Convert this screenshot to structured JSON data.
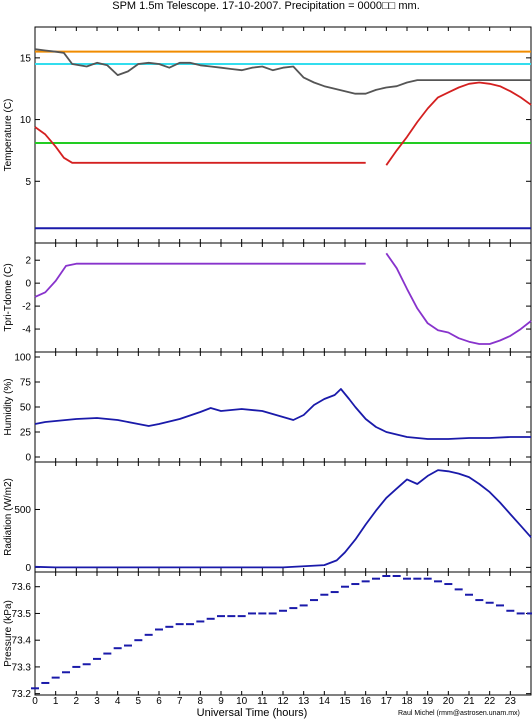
{
  "title": "SPM 1.5m Telescope. 17-10-2007. Precipitation = 0000□□ mm.",
  "credit": "Raul Michel (rmm@astrosen.unam.mx)",
  "colors": {
    "orange": "#f08c00",
    "cyan": "#33ddee",
    "gray": "#555555",
    "red": "#d42020",
    "green": "#22cc22",
    "blue": "#1a1aaa",
    "purple": "#8833cc"
  },
  "chart_data": [
    {
      "type": "line",
      "id": "temperature",
      "ylabel": "Temperature (C)",
      "xlim": [
        0,
        24
      ],
      "ylim": [
        0,
        17.5
      ],
      "yticks": [
        5,
        10,
        15
      ],
      "hlines": [
        {
          "y": 15.5,
          "color": "orange"
        },
        {
          "y": 14.5,
          "color": "cyan"
        },
        {
          "y": 8.1,
          "color": "green"
        },
        {
          "y": 1.2,
          "color": "blue"
        }
      ],
      "series": [
        {
          "color": "gray",
          "x": [
            0,
            0.5,
            1,
            1.4,
            1.8,
            2.5,
            3,
            3.5,
            4,
            4.5,
            5,
            5.5,
            6,
            6.5,
            7,
            7.5,
            8,
            8.5,
            9,
            9.5,
            10,
            10.5,
            11,
            11.5,
            12,
            12.5,
            13,
            13.5,
            14,
            14.5,
            15,
            15.5,
            16,
            16.5,
            17,
            17.5,
            18,
            18.5,
            19,
            20,
            21,
            22,
            23,
            24
          ],
          "y": [
            15.7,
            15.6,
            15.5,
            15.4,
            14.5,
            14.3,
            14.6,
            14.4,
            13.6,
            13.9,
            14.5,
            14.6,
            14.5,
            14.2,
            14.6,
            14.6,
            14.4,
            14.3,
            14.2,
            14.1,
            14.0,
            14.2,
            14.3,
            14.0,
            14.2,
            14.3,
            13.4,
            13.0,
            12.7,
            12.5,
            12.3,
            12.1,
            12.1,
            12.4,
            12.6,
            12.7,
            13.0,
            13.2,
            13.2,
            13.2,
            13.2,
            13.2,
            13.2,
            13.2
          ]
        },
        {
          "color": "red",
          "x": [
            0,
            0.5,
            1,
            1.4,
            1.8,
            3,
            6,
            9,
            12,
            15,
            16,
            16.5,
            17,
            17.5,
            18,
            18.5,
            19,
            19.5,
            20,
            20.5,
            21,
            21.5,
            22,
            22.5,
            23,
            23.5,
            24
          ],
          "y": [
            9.4,
            8.8,
            7.8,
            6.9,
            6.5,
            6.5,
            6.5,
            6.5,
            6.5,
            6.5,
            6.5,
            null,
            6.3,
            7.5,
            8.6,
            9.8,
            10.9,
            11.8,
            12.2,
            12.6,
            12.9,
            13.0,
            12.9,
            12.7,
            12.3,
            11.8,
            11.2
          ]
        }
      ]
    },
    {
      "type": "line",
      "id": "tdiff",
      "ylabel": "Tpri-Tdome (C)",
      "xlim": [
        0,
        24
      ],
      "ylim": [
        -6,
        3.5
      ],
      "yticks": [
        2,
        0,
        -2,
        -4
      ],
      "series": [
        {
          "color": "purple",
          "x": [
            0,
            0.5,
            1,
            1.5,
            2,
            6,
            10,
            14,
            16,
            16.5,
            17,
            17.5,
            18,
            18.5,
            19,
            19.5,
            20,
            20.5,
            21,
            21.5,
            22,
            22.5,
            23,
            23.5,
            24
          ],
          "y": [
            -1.2,
            -0.8,
            0.2,
            1.5,
            1.7,
            1.7,
            1.7,
            1.7,
            1.7,
            null,
            2.6,
            1.3,
            -0.5,
            -2.2,
            -3.5,
            -4.1,
            -4.3,
            -4.8,
            -5.1,
            -5.3,
            -5.3,
            -5.0,
            -4.6,
            -4.0,
            -3.3
          ]
        }
      ]
    },
    {
      "type": "line",
      "id": "humidity",
      "ylabel": "Humidity (%)",
      "xlim": [
        0,
        24
      ],
      "ylim": [
        -5,
        105
      ],
      "yticks": [
        0,
        25,
        50,
        75,
        100
      ],
      "series": [
        {
          "color": "blue",
          "x": [
            0,
            0.5,
            1,
            2,
            3,
            4,
            5,
            5.5,
            6,
            7,
            8,
            8.5,
            9,
            10,
            11,
            12,
            12.5,
            13,
            13.5,
            14,
            14.5,
            14.8,
            15.2,
            15.5,
            16,
            16.5,
            17,
            18,
            19,
            20,
            21,
            22,
            23,
            24
          ],
          "y": [
            33,
            35,
            36,
            38,
            39,
            37,
            33,
            31,
            33,
            38,
            45,
            49,
            46,
            48,
            46,
            40,
            37,
            42,
            52,
            58,
            62,
            68,
            58,
            50,
            38,
            30,
            25,
            20,
            18,
            18,
            19,
            19,
            20,
            20
          ]
        }
      ]
    },
    {
      "type": "line",
      "id": "radiation",
      "ylabel": "Radiation (W/m2)",
      "xlim": [
        0,
        24
      ],
      "ylim": [
        -40,
        910
      ],
      "yticks": [
        0,
        500
      ],
      "series": [
        {
          "color": "blue",
          "x": [
            0,
            1,
            3,
            6,
            9,
            12,
            14,
            14.6,
            15,
            15.5,
            16,
            16.5,
            17,
            17.5,
            18,
            18.5,
            19,
            19.5,
            20,
            20.5,
            21,
            21.5,
            22,
            22.5,
            23,
            23.5,
            24
          ],
          "y": [
            5,
            0,
            0,
            0,
            0,
            0,
            20,
            60,
            130,
            240,
            370,
            490,
            600,
            680,
            760,
            720,
            790,
            840,
            830,
            810,
            780,
            720,
            650,
            560,
            460,
            360,
            260
          ]
        }
      ]
    },
    {
      "type": "scatter",
      "id": "pressure",
      "ylabel": "Pressure (kPa)",
      "xlim": [
        0,
        24
      ],
      "ylim": [
        73.195,
        73.655
      ],
      "yticks": [
        73.2,
        73.3,
        73.4,
        73.5,
        73.6
      ],
      "ytick_labels": [
        "73.2",
        "73.3",
        "73.4",
        "73.5",
        "73.6"
      ],
      "xticks": [
        0,
        1,
        2,
        3,
        4,
        5,
        6,
        7,
        8,
        9,
        10,
        11,
        12,
        13,
        14,
        15,
        16,
        17,
        18,
        19,
        20,
        21,
        22,
        23
      ],
      "xlabel": "Universal Time (hours)",
      "series": [
        {
          "color": "blue",
          "x": [
            0,
            0.5,
            1,
            1.5,
            2,
            2.5,
            3,
            3.5,
            4,
            4.5,
            5,
            5.5,
            6,
            6.5,
            7,
            7.5,
            8,
            8.5,
            9,
            9.5,
            10,
            10.5,
            11,
            11.5,
            12,
            12.5,
            13,
            13.5,
            14,
            14.5,
            15,
            15.5,
            16,
            16.5,
            17,
            17.5,
            18,
            18.5,
            19,
            19.5,
            20,
            20.5,
            21,
            21.5,
            22,
            22.5,
            23,
            23.5,
            24
          ],
          "y": [
            73.22,
            73.24,
            73.26,
            73.28,
            73.3,
            73.31,
            73.33,
            73.35,
            73.37,
            73.38,
            73.4,
            73.42,
            73.44,
            73.45,
            73.46,
            73.46,
            73.47,
            73.48,
            73.49,
            73.49,
            73.49,
            73.5,
            73.5,
            73.5,
            73.51,
            73.52,
            73.53,
            73.55,
            73.57,
            73.58,
            73.6,
            73.61,
            73.62,
            73.63,
            73.64,
            73.64,
            73.63,
            73.63,
            73.63,
            73.62,
            73.61,
            73.59,
            73.57,
            73.55,
            73.54,
            73.53,
            73.51,
            73.5,
            73.5
          ]
        }
      ]
    }
  ]
}
